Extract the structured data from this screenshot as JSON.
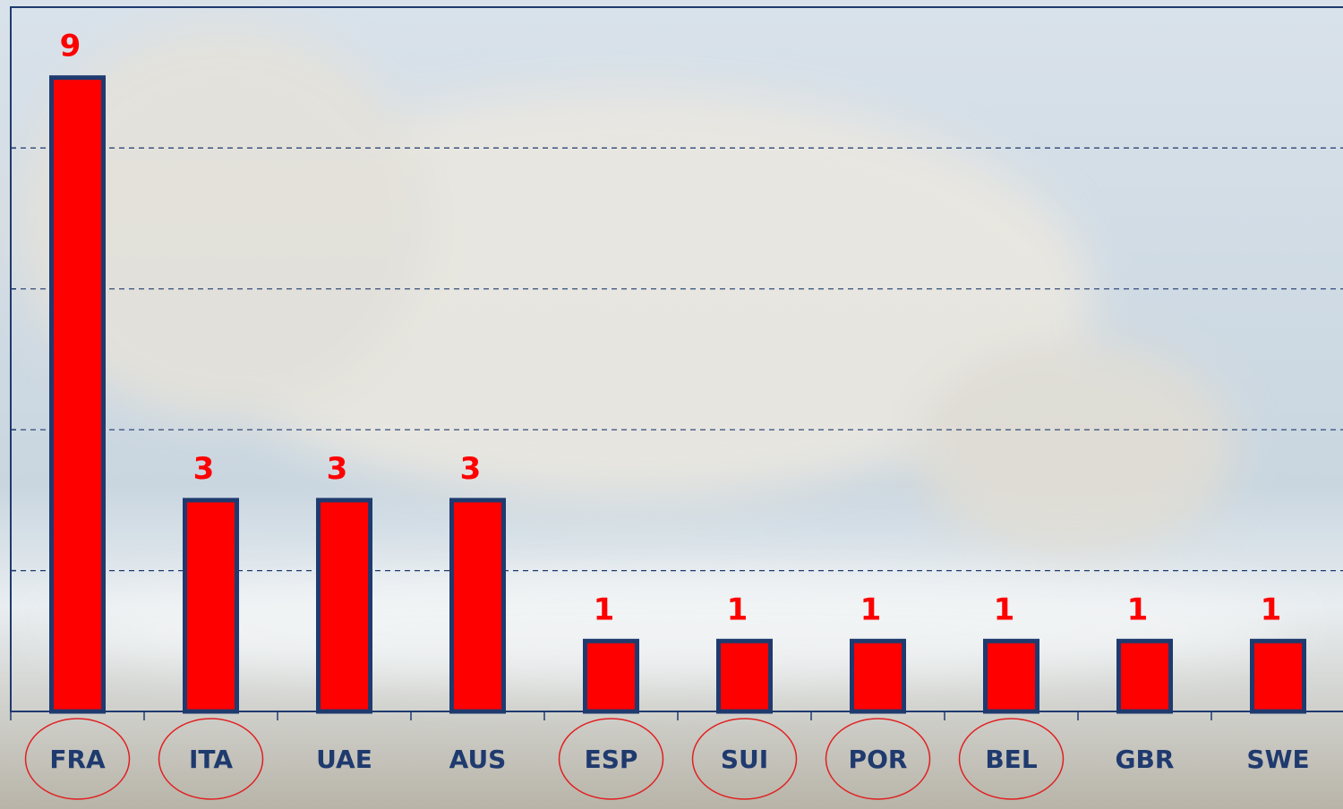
{
  "chart_data": {
    "type": "bar",
    "categories": [
      "FRA",
      "ITA",
      "UAE",
      "AUS",
      "ESP",
      "SUI",
      "POR",
      "BEL",
      "GBR",
      "SWE"
    ],
    "values": [
      9,
      3,
      3,
      3,
      1,
      1,
      1,
      1,
      1,
      1
    ],
    "circled": [
      true,
      true,
      false,
      false,
      true,
      true,
      true,
      true,
      false,
      false
    ],
    "color": "#ff0000",
    "edge_color": "#1f3a6e",
    "label_color": "#ff0000",
    "circle_color": "#e02020",
    "ylim": [
      0,
      10
    ],
    "yticks": [
      0,
      2,
      4,
      6,
      8,
      10
    ],
    "grid": true
  }
}
